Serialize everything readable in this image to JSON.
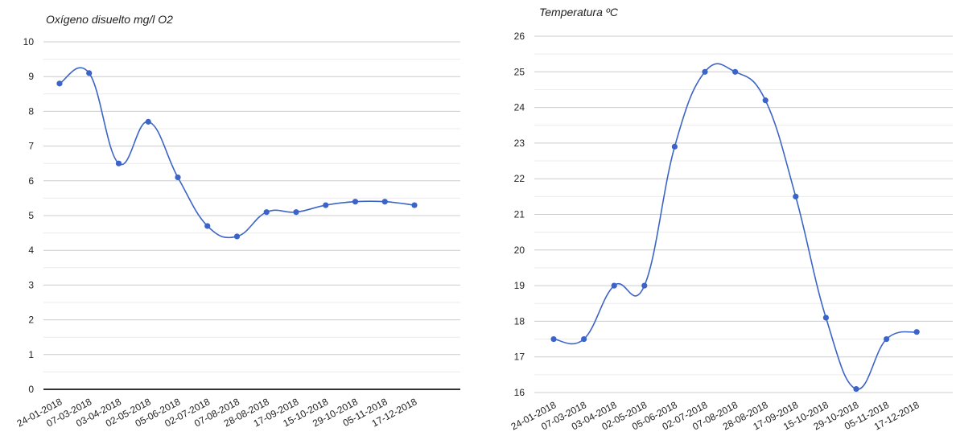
{
  "chart_data": [
    {
      "type": "line",
      "title": "Oxígeno disuelto mg/l O2",
      "xlabel": "",
      "ylabel": "",
      "categories": [
        "24-01-2018",
        "07-03-2018",
        "03-04-2018",
        "02-05-2018",
        "05-06-2018",
        "02-07-2018",
        "07-08-2018",
        "28-08-2018",
        "17-09-2018",
        "15-10-2018",
        "29-10-2018",
        "05-11-2018",
        "17-12-2018"
      ],
      "series": [
        {
          "values": [
            8.8,
            9.1,
            6.5,
            7.7,
            6.1,
            4.7,
            4.4,
            5.1,
            5.1,
            5.3,
            5.4,
            5.4,
            5.3
          ]
        }
      ],
      "ylim": [
        0,
        10
      ],
      "yticks": [
        "0",
        "1",
        "2",
        "3",
        "4",
        "5",
        "6",
        "7",
        "8",
        "9",
        "10"
      ],
      "grid": true,
      "minor_grid": true,
      "line_color": "#3c64c8"
    },
    {
      "type": "line",
      "title": "Temperatura ºC",
      "xlabel": "",
      "ylabel": "",
      "categories": [
        "24-01-2018",
        "07-03-2018",
        "03-04-2018",
        "02-05-2018",
        "05-06-2018",
        "02-07-2018",
        "07-08-2018",
        "28-08-2018",
        "17-09-2018",
        "15-10-2018",
        "29-10-2018",
        "05-11-2018",
        "17-12-2018"
      ],
      "series": [
        {
          "values": [
            17.5,
            17.5,
            19.0,
            19.0,
            22.9,
            25.0,
            25.0,
            24.2,
            21.5,
            18.1,
            16.1,
            17.5,
            17.7
          ]
        }
      ],
      "ylim": [
        16,
        26
      ],
      "yticks": [
        "16",
        "17",
        "18",
        "19",
        "20",
        "21",
        "22",
        "23",
        "24",
        "25",
        "26"
      ],
      "grid": true,
      "minor_grid": true,
      "line_color": "#3c64c8"
    }
  ]
}
